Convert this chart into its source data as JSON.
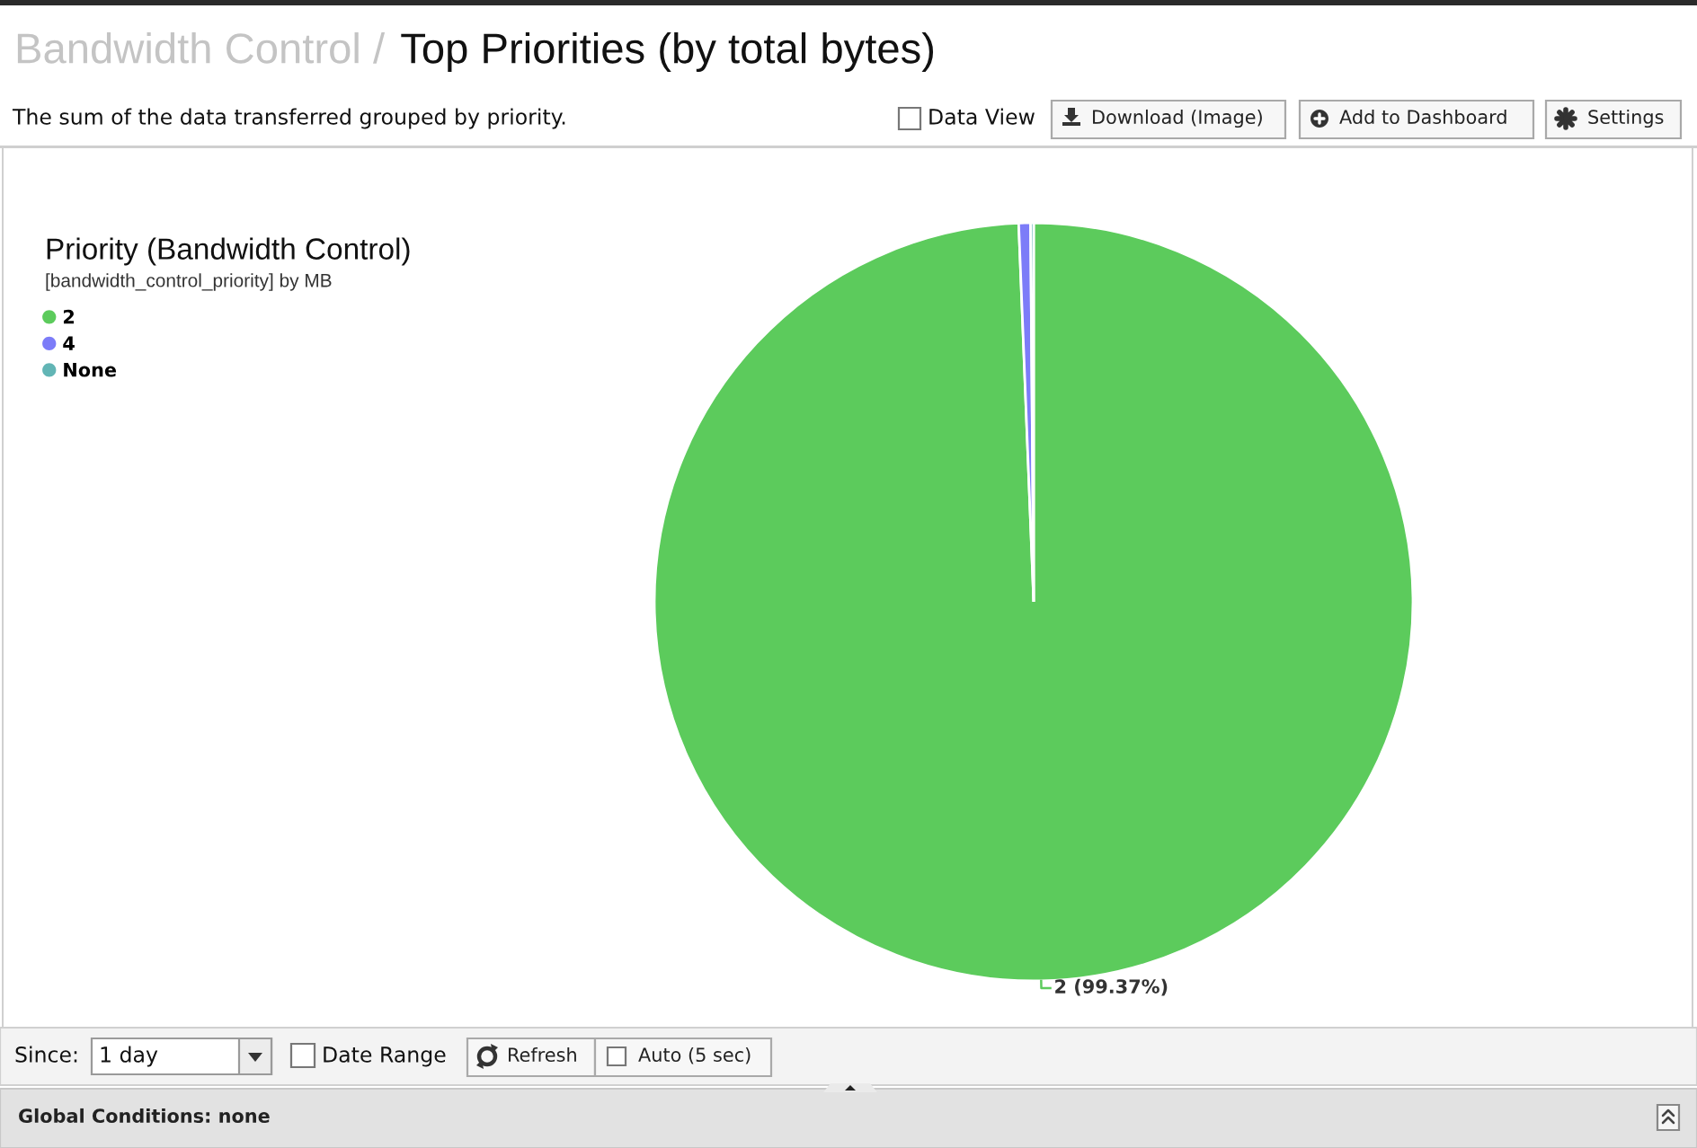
{
  "chart_data": {
    "type": "pie",
    "title": "Top Priorities (by total bytes)",
    "subtitle": "The sum of the data transferred grouped by priority.",
    "legend_title": "Priority (Bandwidth Control)",
    "categories": [
      "2",
      "4",
      "None"
    ],
    "values": [
      99.37,
      0.5,
      0.13
    ],
    "colors": [
      "#5ccb5c",
      "#7c7cf8",
      "#62b5b5"
    ],
    "value_labels": [
      "2 (99.37%)",
      null,
      null
    ],
    "legend": "top left",
    "marker": "circle",
    "annotations": [
      "Bandwidth Control /",
      "[bandwidth_control_priority] by MB",
      "Data View",
      "Download (Image)",
      "Add to Dashboard",
      "Settings",
      "Since:",
      "1 day",
      "Date Range",
      "Refresh",
      "Auto (5 sec)",
      "Global Conditions: none"
    ]
  }
}
